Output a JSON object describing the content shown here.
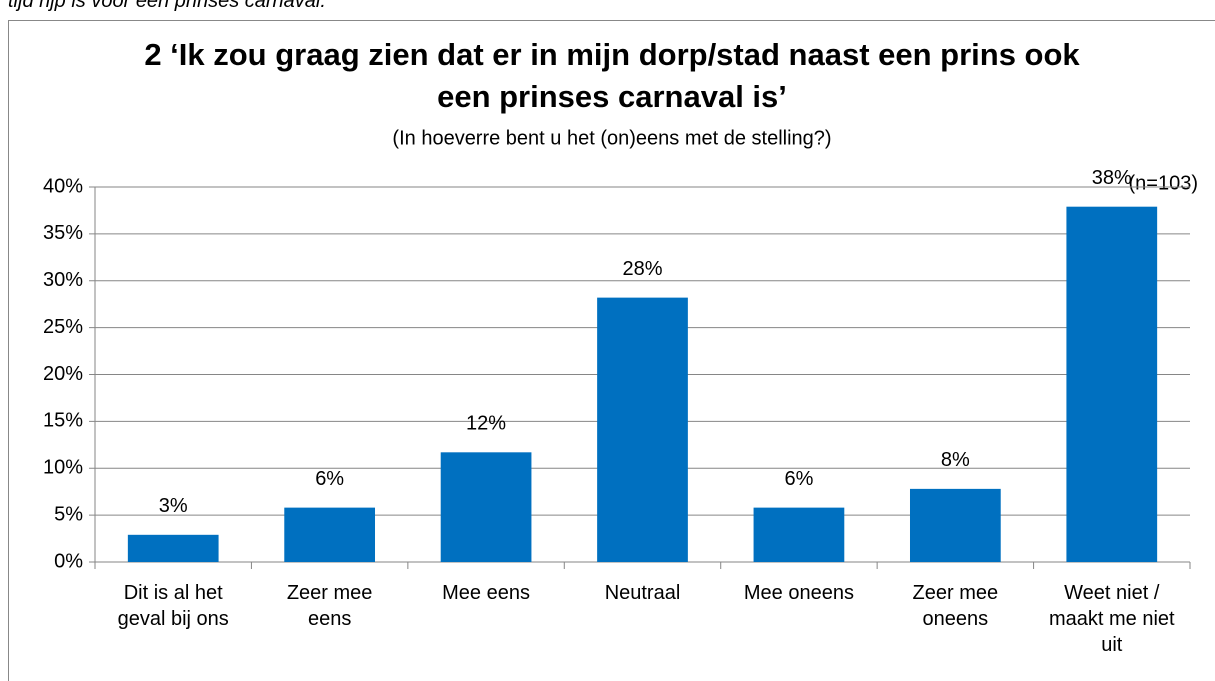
{
  "caption": "tijd rijp is voor een prinses carnaval.",
  "chart_data": {
    "type": "bar",
    "title": "2 ‘Ik zou graag zien dat er in mijn dorp/stad naast een prins ook een prinses carnaval is’",
    "subtitle": "(In hoeverre bent u het (on)eens met de stelling?)",
    "annotation": "(n=103)",
    "categories": [
      "Dit is al het geval bij ons",
      "Zeer mee eens",
      "Mee eens",
      "Neutraal",
      "Mee oneens",
      "Zeer mee oneens",
      "Weet niet / maakt me niet uit"
    ],
    "values": [
      2.9,
      5.8,
      11.7,
      28.2,
      5.8,
      7.8,
      37.9
    ],
    "value_labels": [
      "3%",
      "6%",
      "12%",
      "28%",
      "6%",
      "8%",
      "38%"
    ],
    "color": "#0070c0",
    "ylim": [
      0,
      40
    ],
    "yticks": [
      {
        "value": 0,
        "label": "0%"
      },
      {
        "value": 5,
        "label": "5%"
      },
      {
        "value": 10,
        "label": "10%"
      },
      {
        "value": 15,
        "label": "15%"
      },
      {
        "value": 20,
        "label": "20%"
      },
      {
        "value": 25,
        "label": "25%"
      },
      {
        "value": 30,
        "label": "30%"
      },
      {
        "value": 35,
        "label": "35%"
      },
      {
        "value": 40,
        "label": "40%"
      }
    ],
    "grid": true
  }
}
